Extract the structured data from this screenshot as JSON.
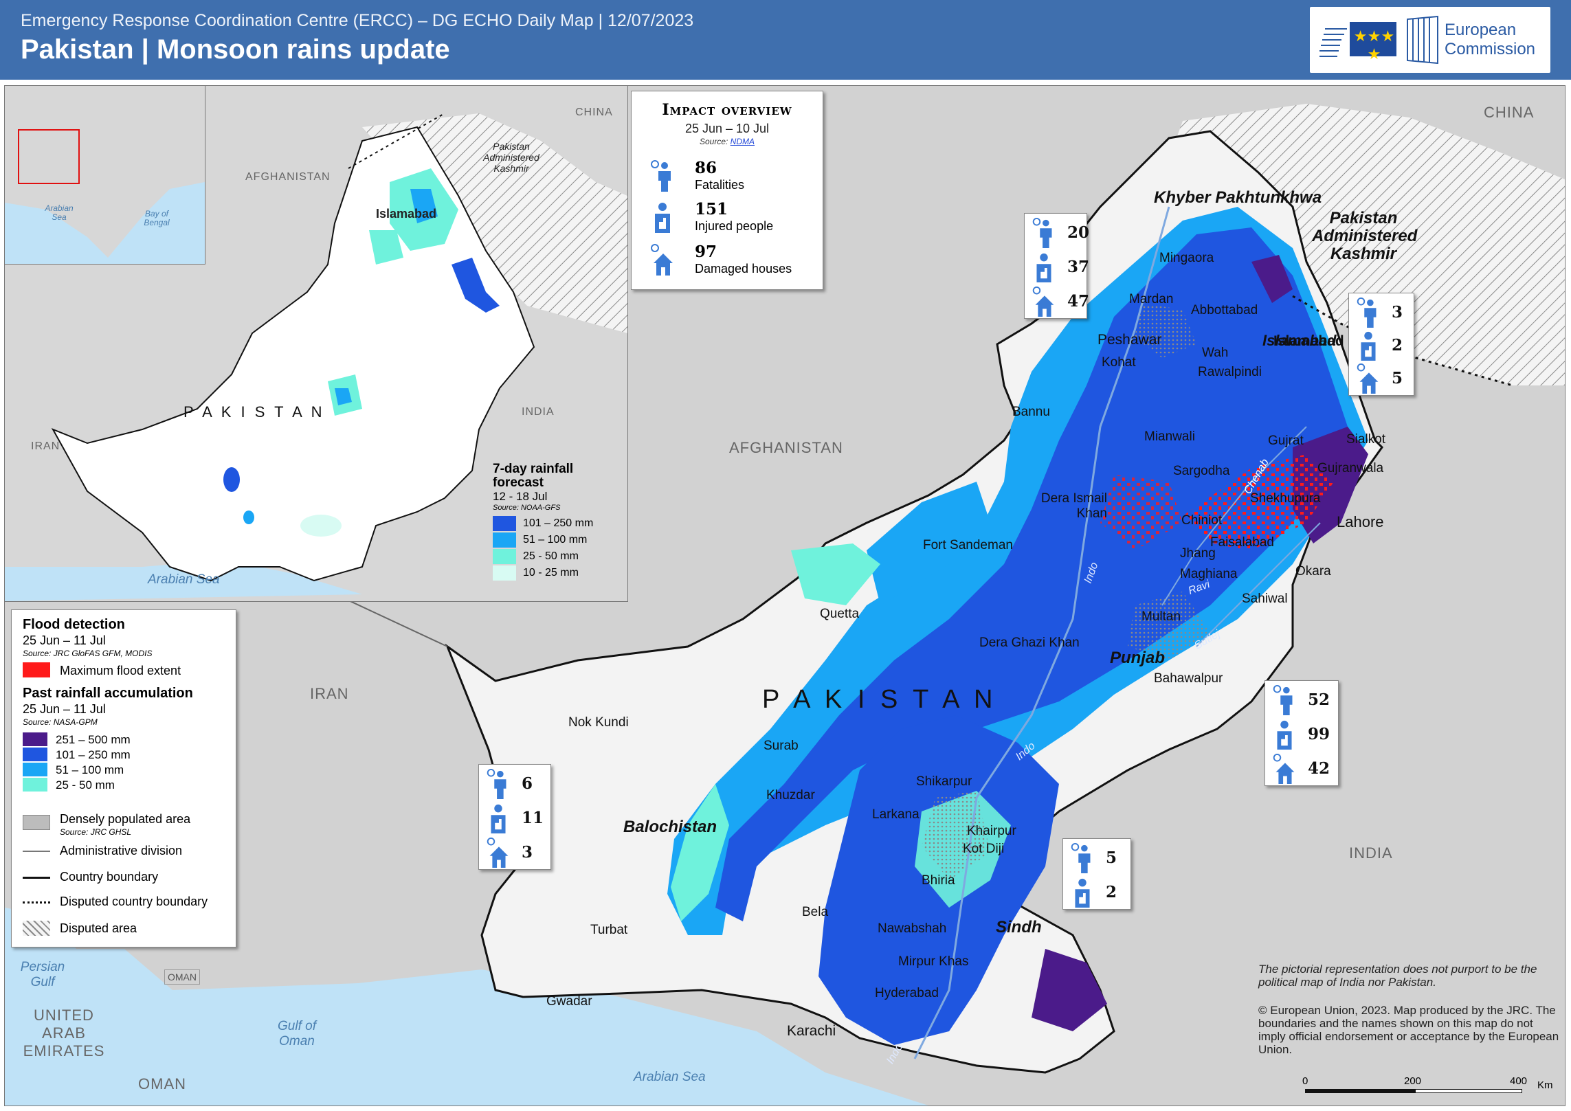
{
  "header": {
    "org_line": "Emergency Response Coordination Centre (ERCC) – DG ECHO Daily Map | 12/07/2023",
    "title": "Pakistan | Monsoon rains update",
    "logo_line1": "European",
    "logo_line2": "Commission"
  },
  "colors": {
    "header_bg": "#3f6fae",
    "rain_251_500": "#4b1b8a",
    "rain_101_250": "#1f56e0",
    "rain_51_100": "#1aa6f5",
    "rain_25_50": "#6ff2dc",
    "rain_10_25": "#d8fbf3",
    "flood": "#ff1a1a",
    "land": "#d2d2d2",
    "water": "#bfe2f7"
  },
  "impact": {
    "title": "Impact overview",
    "dates": "25 Jun – 10 Jul",
    "source_prefix": "Source:",
    "source_link": "NDMA",
    "rows": [
      {
        "icon": "fatalities-icon",
        "value": "86",
        "label": "Fatalities"
      },
      {
        "icon": "injured-icon",
        "value": "151",
        "label": "Injured people"
      },
      {
        "icon": "damaged-house-icon",
        "value": "97",
        "label": "Damaged houses"
      }
    ]
  },
  "provinces": [
    {
      "name": "Khyber Pakhtunkhwa",
      "fatalities": "20",
      "injured": "37",
      "houses": "47"
    },
    {
      "name": "Pakistan Administered Kashmir",
      "fatalities": "3",
      "injured": "2",
      "houses": "5"
    },
    {
      "name": "Punjab",
      "fatalities": "52",
      "injured": "99",
      "houses": "42"
    },
    {
      "name": "Balochistan",
      "fatalities": "6",
      "injured": "11",
      "houses": "3"
    },
    {
      "name": "Sindh",
      "fatalities": "5",
      "injured": "2"
    }
  ],
  "inset": {
    "countries": [
      "AFGHANISTAN",
      "IRAN",
      "INDIA",
      "CHINA",
      "P A K I S T A N"
    ],
    "disputed": "Pakistan Administered Kashmir",
    "capital": "Islamabad",
    "sea": "Arabian Sea",
    "overview_seas": [
      "Arabian Sea",
      "Bay of Bengal"
    ],
    "forecast_title": "7-day rainfall forecast",
    "forecast_dates": "12 - 18 Jul",
    "forecast_source": "Source: NOAA-GFS",
    "forecast_classes": [
      "101 – 250 mm",
      "51 – 100 mm",
      "25 - 50 mm",
      "10 - 25 mm"
    ]
  },
  "legend": {
    "flood_title": "Flood detection",
    "flood_dates": "25 Jun – 11 Jul",
    "flood_source": "Source: JRC GloFAS GFM, MODIS",
    "flood_item": "Maximum flood extent",
    "rain_title": "Past rainfall accumulation",
    "rain_dates": "25 Jun – 11 Jul",
    "rain_source": "Source: NASA-GPM",
    "rain_classes": [
      "251 – 500 mm",
      "101 – 250 mm",
      "51 – 100 mm",
      "25 - 50 mm"
    ],
    "pop_item": "Densely populated area",
    "pop_source": "Source: JRC GHSL",
    "admin_item": "Administrative division",
    "country_item": "Country boundary",
    "disputed_boundary_item": "Disputed country boundary",
    "disputed_area_item": "Disputed area"
  },
  "map": {
    "countries": {
      "afghanistan": "AFGHANISTAN",
      "iran": "IRAN",
      "india": "INDIA",
      "china": "CHINA",
      "oman": "OMAN",
      "oman_small": "OMAN",
      "uae": "UNITED ARAB EMIRATES",
      "pakistan": "P A K I S T A N"
    },
    "seas": {
      "arabian": "Arabian Sea",
      "oman": "Gulf of Oman",
      "persian": "Persian Gulf"
    },
    "capital": "Islamabad",
    "cities": [
      "Mingaora",
      "Mardan",
      "Abbottabad",
      "Peshawar",
      "Islamabad",
      "Wah",
      "Rawalpindi",
      "Kohat",
      "Bannu",
      "Mianwali",
      "Gujrat",
      "Sialkot",
      "Sargodha",
      "Gujranwala",
      "Dera Ismail Khan",
      "Shekhupura",
      "Lahore",
      "Chiniot",
      "Fort Sandeman",
      "Faisalabad",
      "Jhang",
      "Maghiana",
      "Okara",
      "Sahiwal",
      "Quetta",
      "Multan",
      "Dera Ghazi Khan",
      "Bahawalpur",
      "Nok Kundi",
      "Surab",
      "Shikarpur",
      "Khuzdar",
      "Larkana",
      "Khairpur",
      "Kot Diji",
      "Bhiria",
      "Bela",
      "Nawabshah",
      "Turbat",
      "Mirpur Khas",
      "Hyderabad",
      "Gwadar",
      "Karachi"
    ],
    "rivers": [
      "Chenab",
      "Ravi",
      "Sutlej",
      "Indo",
      "Indo",
      "Indo"
    ],
    "scale": {
      "labels": [
        "0",
        "200",
        "400"
      ],
      "unit": "Km"
    }
  },
  "notes": {
    "disclaimer": "The pictorial representation does not purport to be the political map of India nor Pakistan.",
    "copyright": "© European Union, 2023. Map produced by the JRC. The boundaries and the names shown on this map do not imply official endorsement or acceptance by the European Union."
  }
}
